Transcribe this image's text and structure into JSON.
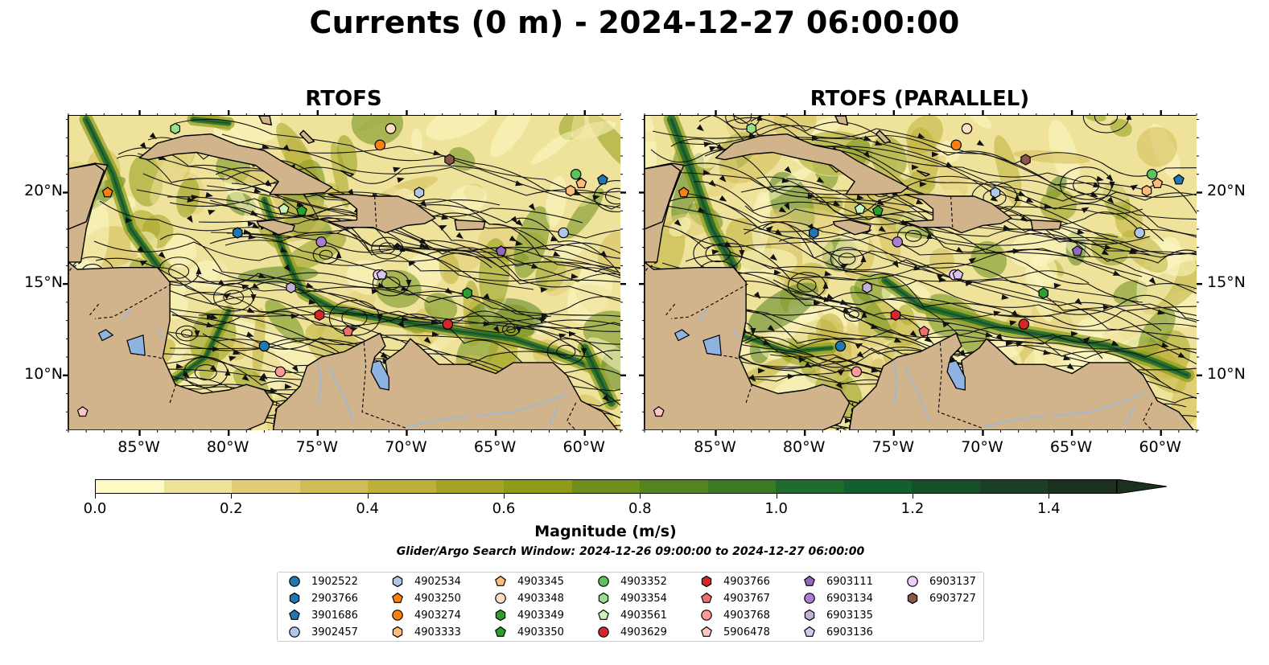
{
  "title": "Currents (0 m) - 2024-12-27 06:00:00",
  "panels": [
    {
      "title": "RTOFS"
    },
    {
      "title": "RTOFS (PARALLEL)"
    }
  ],
  "axes": {
    "lon_ticks": [
      "85°W",
      "80°W",
      "75°W",
      "70°W",
      "65°W",
      "60°W"
    ],
    "lat_ticks": [
      "20°N",
      "15°N",
      "10°N"
    ]
  },
  "colorbar": {
    "label": "Magnitude (m/s)",
    "ticks": [
      "0.0",
      "0.2",
      "0.4",
      "0.6",
      "0.8",
      "1.0",
      "1.2",
      "1.4"
    ],
    "min": 0.0,
    "max": 1.5,
    "step": 0.1,
    "extend": "max",
    "colors": [
      "#fdf8c4",
      "#efe29b",
      "#e0cd74",
      "#d2bd58",
      "#bdb13a",
      "#a5a525",
      "#8f9c1a",
      "#6e8f1c",
      "#53841f",
      "#3a7a25",
      "#1f6c2d",
      "#125f2f",
      "#15502a",
      "#1b4025",
      "#1c301f"
    ]
  },
  "search_window": "Glider/Argo Search Window: 2024-12-26 09:00:00 to 2024-12-27 06:00:00",
  "legend": [
    {
      "id": "1902522",
      "color": "#1f77b4",
      "shape": "circle"
    },
    {
      "id": "2903766",
      "color": "#1f77b4",
      "shape": "hexagon"
    },
    {
      "id": "3901686",
      "color": "#1f77b4",
      "shape": "pentagon"
    },
    {
      "id": "3902457",
      "color": "#aec7e8",
      "shape": "circle"
    },
    {
      "id": "4902534",
      "color": "#aec7e8",
      "shape": "hexagon"
    },
    {
      "id": "4903250",
      "color": "#ff7f0e",
      "shape": "pentagon"
    },
    {
      "id": "4903274",
      "color": "#ff7f0e",
      "shape": "circle"
    },
    {
      "id": "4903333",
      "color": "#ffbb78",
      "shape": "hexagon"
    },
    {
      "id": "4903345",
      "color": "#ffbb78",
      "shape": "pentagon"
    },
    {
      "id": "4903348",
      "color": "#ffdfc0",
      "shape": "circle"
    },
    {
      "id": "4903349",
      "color": "#2ca02c",
      "shape": "hexagon"
    },
    {
      "id": "4903350",
      "color": "#2ca02c",
      "shape": "pentagon"
    },
    {
      "id": "4903352",
      "color": "#5cc25c",
      "shape": "circle"
    },
    {
      "id": "4903354",
      "color": "#98df8a",
      "shape": "hexagon"
    },
    {
      "id": "4903561",
      "color": "#c9f5bd",
      "shape": "pentagon"
    },
    {
      "id": "4903629",
      "color": "#d62728",
      "shape": "circle"
    },
    {
      "id": "4903766",
      "color": "#d62728",
      "shape": "hexagon"
    },
    {
      "id": "4903767",
      "color": "#ee6f6f",
      "shape": "pentagon"
    },
    {
      "id": "4903768",
      "color": "#ff9896",
      "shape": "circle"
    },
    {
      "id": "5906478",
      "color": "#ffc5c4",
      "shape": "pentagon"
    },
    {
      "id": "6903111",
      "color": "#9467bd",
      "shape": "pentagon"
    },
    {
      "id": "6903134",
      "color": "#a97fd6",
      "shape": "circle"
    },
    {
      "id": "6903135",
      "color": "#c5b0d5",
      "shape": "hexagon"
    },
    {
      "id": "6903136",
      "color": "#d9c6ee",
      "shape": "pentagon"
    },
    {
      "id": "6903137",
      "color": "#f0cdf8",
      "shape": "circle"
    },
    {
      "id": "6903727",
      "color": "#8c564b",
      "shape": "hexagon"
    }
  ],
  "map_colors": {
    "land": "#d2b48c",
    "lake": "#8fb3e0",
    "river": "#9fb8d8"
  },
  "map_extent": {
    "lon": [
      -89,
      -58
    ],
    "lat": [
      7,
      24.2
    ]
  },
  "floats": [
    {
      "id": "4903354",
      "lon": -83.0,
      "lat": 23.5
    },
    {
      "id": "4903348",
      "lon": -70.9,
      "lat": 23.5
    },
    {
      "id": "4903274",
      "lon": -71.5,
      "lat": 22.6
    },
    {
      "id": "6903727",
      "lon": -67.6,
      "lat": 21.8
    },
    {
      "id": "4903352",
      "lon": -60.5,
      "lat": 21.0
    },
    {
      "id": "3901686",
      "lon": -59.0,
      "lat": 20.7
    },
    {
      "id": "4903333",
      "lon": -60.8,
      "lat": 20.1
    },
    {
      "id": "4903345",
      "lon": -60.2,
      "lat": 20.5
    },
    {
      "id": "4903250",
      "lon": -86.8,
      "lat": 20.0
    },
    {
      "id": "4902534",
      "lon": -69.3,
      "lat": 20.0
    },
    {
      "id": "4903561",
      "lon": -76.9,
      "lat": 19.1
    },
    {
      "id": "2903766",
      "lon": -79.5,
      "lat": 17.8
    },
    {
      "id": "4903350",
      "lon": -75.9,
      "lat": 19.0
    },
    {
      "id": "6903134",
      "lon": -74.8,
      "lat": 17.3
    },
    {
      "id": "3902457",
      "lon": -61.2,
      "lat": 17.8
    },
    {
      "id": "6903111",
      "lon": -64.7,
      "lat": 16.8
    },
    {
      "id": "6903137",
      "lon": -71.6,
      "lat": 15.5
    },
    {
      "id": "6903136",
      "lon": -71.4,
      "lat": 15.5
    },
    {
      "id": "6903135",
      "lon": -76.5,
      "lat": 14.8
    },
    {
      "id": "4903349",
      "lon": -66.6,
      "lat": 14.5
    },
    {
      "id": "4903766",
      "lon": -74.9,
      "lat": 13.3
    },
    {
      "id": "4903767",
      "lon": -73.3,
      "lat": 12.4
    },
    {
      "id": "4903629",
      "lon": -67.7,
      "lat": 12.8
    },
    {
      "id": "1902522",
      "lon": -78.0,
      "lat": 11.6
    },
    {
      "id": "4903768",
      "lon": -77.1,
      "lat": 10.2
    },
    {
      "id": "5906478",
      "lon": -88.2,
      "lat": 8.0
    }
  ]
}
